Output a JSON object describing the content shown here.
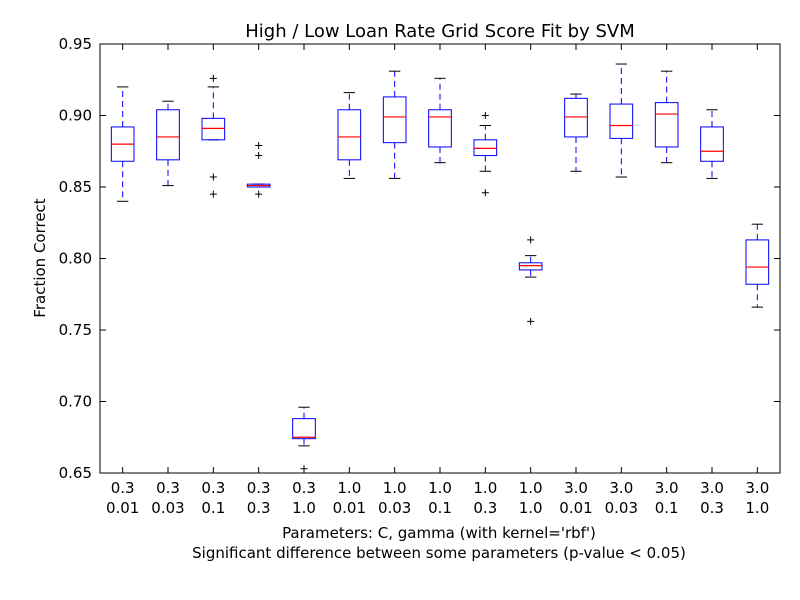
{
  "chart_data": {
    "type": "boxplot",
    "title": "High / Low Loan Rate Grid Score Fit by SVM",
    "xlabel": "Parameters: C, gamma (with kernel='rbf')",
    "subtitle": "Significant difference between some parameters (p-value < 0.05)",
    "ylabel": "Fraction Correct",
    "ylim": [
      0.65,
      0.95
    ],
    "yticks": [
      "0.65",
      "0.70",
      "0.75",
      "0.80",
      "0.85",
      "0.90",
      "0.95"
    ],
    "grid": false,
    "colors": {
      "box": "#0000ff",
      "median": "#ff0000",
      "whisker": "#0000ff",
      "cap": "#000000",
      "flier": "#000000"
    },
    "categories": [
      {
        "C": "0.3",
        "gamma": "0.01"
      },
      {
        "C": "0.3",
        "gamma": "0.03"
      },
      {
        "C": "0.3",
        "gamma": "0.1"
      },
      {
        "C": "0.3",
        "gamma": "0.3"
      },
      {
        "C": "0.3",
        "gamma": "1.0"
      },
      {
        "C": "1.0",
        "gamma": "0.01"
      },
      {
        "C": "1.0",
        "gamma": "0.03"
      },
      {
        "C": "1.0",
        "gamma": "0.1"
      },
      {
        "C": "1.0",
        "gamma": "0.3"
      },
      {
        "C": "1.0",
        "gamma": "1.0"
      },
      {
        "C": "3.0",
        "gamma": "0.01"
      },
      {
        "C": "3.0",
        "gamma": "0.03"
      },
      {
        "C": "3.0",
        "gamma": "0.1"
      },
      {
        "C": "3.0",
        "gamma": "0.3"
      },
      {
        "C": "3.0",
        "gamma": "1.0"
      }
    ],
    "boxes": [
      {
        "whislo": 0.84,
        "q1": 0.868,
        "med": 0.88,
        "q3": 0.892,
        "whishi": 0.92,
        "fliers": []
      },
      {
        "whislo": 0.851,
        "q1": 0.869,
        "med": 0.885,
        "q3": 0.904,
        "whishi": 0.91,
        "fliers": []
      },
      {
        "whislo": 0.883,
        "q1": 0.883,
        "med": 0.891,
        "q3": 0.898,
        "whishi": 0.92,
        "fliers": [
          0.926,
          0.857,
          0.845
        ]
      },
      {
        "whislo": 0.85,
        "q1": 0.85,
        "med": 0.851,
        "q3": 0.852,
        "whishi": 0.852,
        "fliers": [
          0.879,
          0.872,
          0.845
        ]
      },
      {
        "whislo": 0.669,
        "q1": 0.674,
        "med": 0.675,
        "q3": 0.688,
        "whishi": 0.696,
        "fliers": [
          0.653
        ]
      },
      {
        "whislo": 0.856,
        "q1": 0.869,
        "med": 0.885,
        "q3": 0.904,
        "whishi": 0.916,
        "fliers": []
      },
      {
        "whislo": 0.856,
        "q1": 0.881,
        "med": 0.899,
        "q3": 0.913,
        "whishi": 0.931,
        "fliers": []
      },
      {
        "whislo": 0.867,
        "q1": 0.878,
        "med": 0.899,
        "q3": 0.904,
        "whishi": 0.926,
        "fliers": []
      },
      {
        "whislo": 0.861,
        "q1": 0.872,
        "med": 0.877,
        "q3": 0.883,
        "whishi": 0.893,
        "fliers": [
          0.9,
          0.846
        ]
      },
      {
        "whislo": 0.787,
        "q1": 0.792,
        "med": 0.795,
        "q3": 0.797,
        "whishi": 0.802,
        "fliers": [
          0.813,
          0.756
        ]
      },
      {
        "whislo": 0.861,
        "q1": 0.885,
        "med": 0.899,
        "q3": 0.912,
        "whishi": 0.915,
        "fliers": []
      },
      {
        "whislo": 0.857,
        "q1": 0.884,
        "med": 0.893,
        "q3": 0.908,
        "whishi": 0.936,
        "fliers": []
      },
      {
        "whislo": 0.867,
        "q1": 0.878,
        "med": 0.901,
        "q3": 0.909,
        "whishi": 0.931,
        "fliers": []
      },
      {
        "whislo": 0.856,
        "q1": 0.868,
        "med": 0.875,
        "q3": 0.892,
        "whishi": 0.904,
        "fliers": []
      },
      {
        "whislo": 0.766,
        "q1": 0.782,
        "med": 0.794,
        "q3": 0.813,
        "whishi": 0.824,
        "fliers": []
      }
    ]
  }
}
